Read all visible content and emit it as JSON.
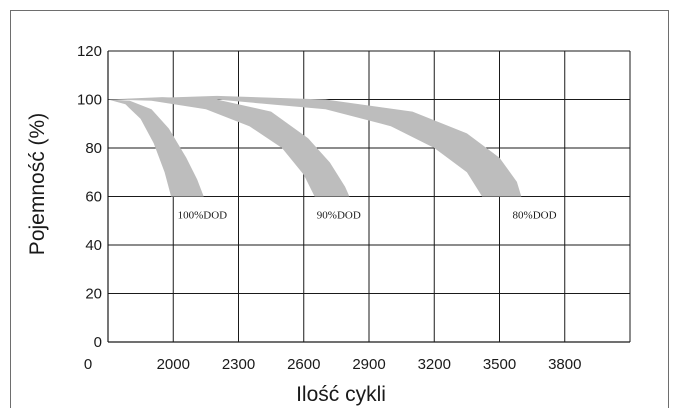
{
  "chart_data": {
    "type": "area",
    "ylabel": "Pojemność (%)",
    "xlabel": "Ilość cykli",
    "x_origin_label": "0",
    "x_ticks": [
      2000,
      2300,
      2600,
      2900,
      3200,
      3500,
      3800
    ],
    "y_ticks": [
      0,
      20,
      40,
      60,
      80,
      100,
      120
    ],
    "xlim": [
      1700,
      4100
    ],
    "ylim": [
      0,
      120
    ],
    "grid": true,
    "band_color": "#bdbdbd",
    "series": [
      {
        "name": "100%DOD",
        "label_at": [
          2020,
          51
        ],
        "upper": [
          [
            1700,
            100
          ],
          [
            1800,
            99.5
          ],
          [
            1900,
            96
          ],
          [
            1980,
            88
          ],
          [
            2060,
            76
          ],
          [
            2110,
            67
          ],
          [
            2140,
            60
          ]
        ],
        "lower": [
          [
            1700,
            100
          ],
          [
            1780,
            98
          ],
          [
            1850,
            92
          ],
          [
            1910,
            82
          ],
          [
            1960,
            70
          ],
          [
            1990,
            60
          ]
        ]
      },
      {
        "name": "90%DOD",
        "label_at": [
          2660,
          51
        ],
        "upper": [
          [
            1700,
            100
          ],
          [
            1950,
            101
          ],
          [
            2200,
            100
          ],
          [
            2450,
            95
          ],
          [
            2620,
            84
          ],
          [
            2720,
            74
          ],
          [
            2790,
            64
          ],
          [
            2810,
            60
          ]
        ],
        "lower": [
          [
            1700,
            100
          ],
          [
            1900,
            99.5
          ],
          [
            2150,
            96
          ],
          [
            2350,
            89
          ],
          [
            2500,
            80
          ],
          [
            2600,
            69
          ],
          [
            2650,
            60
          ]
        ]
      },
      {
        "name": "80%DOD",
        "label_at": [
          3560,
          51
        ],
        "upper": [
          [
            1700,
            100
          ],
          [
            2200,
            101.5
          ],
          [
            2700,
            100
          ],
          [
            3100,
            95
          ],
          [
            3350,
            86
          ],
          [
            3500,
            76
          ],
          [
            3580,
            66
          ],
          [
            3600,
            60
          ]
        ],
        "lower": [
          [
            1700,
            100
          ],
          [
            2200,
            100
          ],
          [
            2700,
            96
          ],
          [
            3000,
            89
          ],
          [
            3200,
            80
          ],
          [
            3350,
            70
          ],
          [
            3420,
            60
          ]
        ]
      }
    ]
  }
}
